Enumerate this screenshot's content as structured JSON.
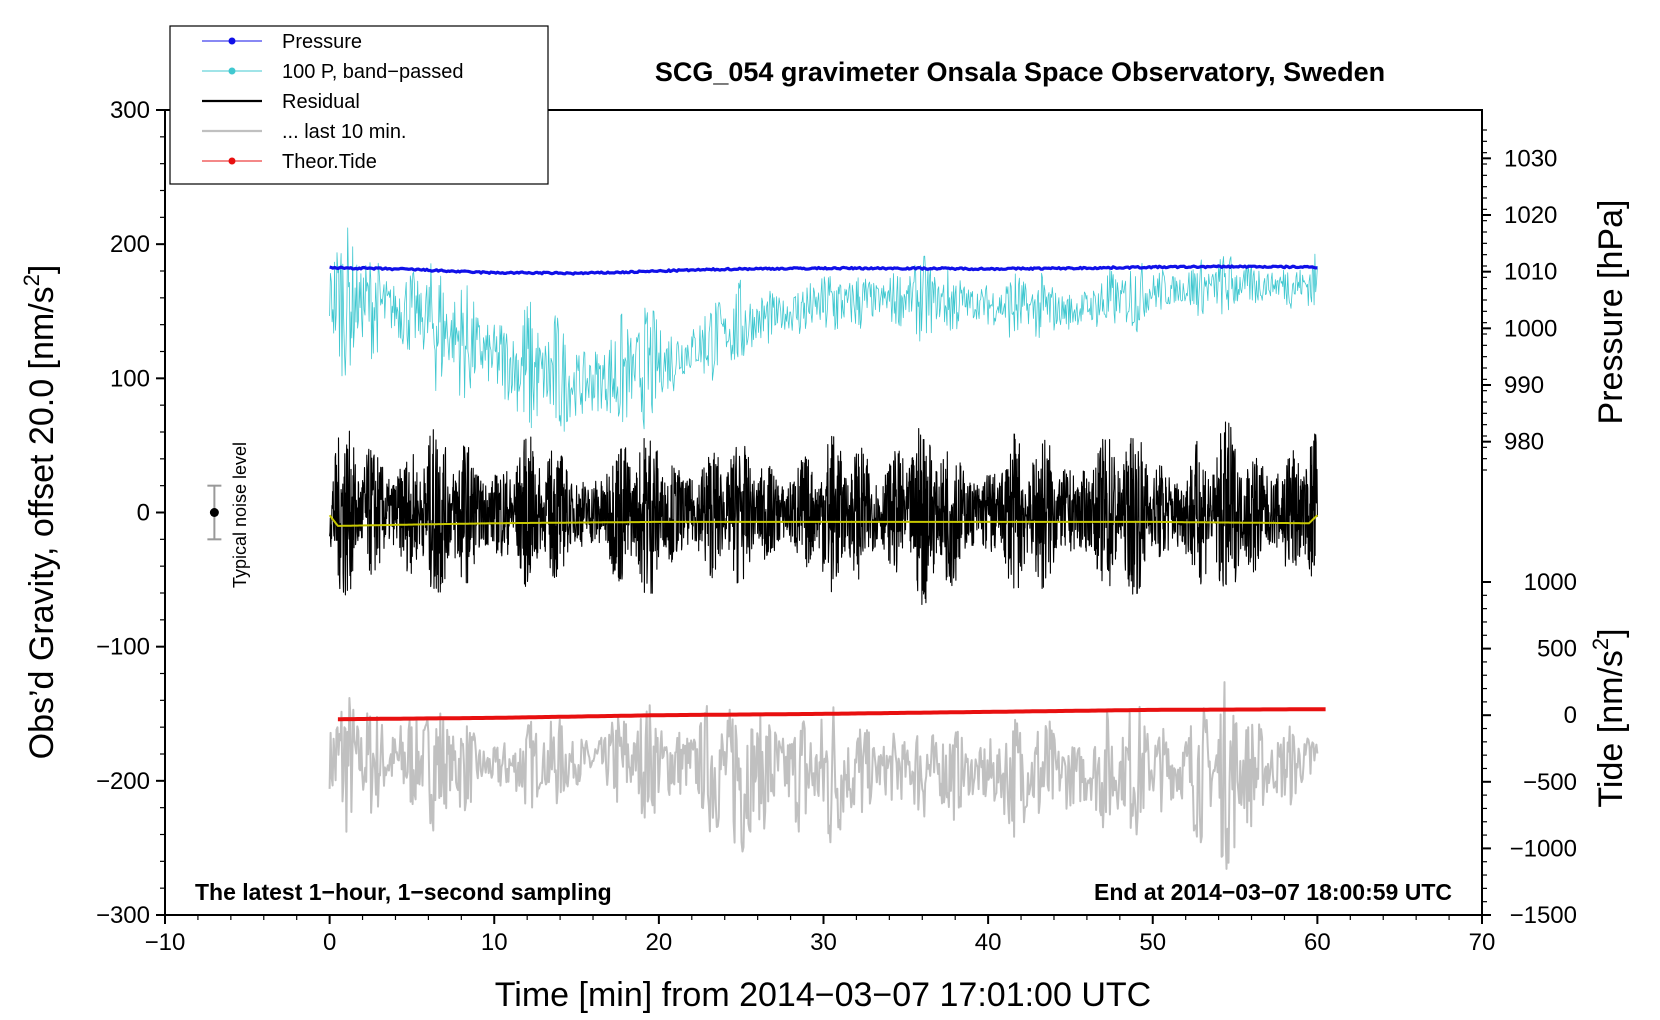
{
  "chart_data": {
    "type": "line",
    "title": "SCG_054 gravimeter Onsala Space Observatory, Sweden",
    "xlabel": "Time [min] from 2014−03−07 17:01:00 UTC",
    "ylabel": "Obs’d Gravity, offset 20.0 [nm/s2]",
    "ylabel_main": "Obs’d Gravity, offset 20.0 [nm/s",
    "ylabel_sup": "2",
    "ylabel_end": "]",
    "xlim": [
      -10,
      70
    ],
    "ylim": [
      -300,
      300
    ],
    "x_ticks": [
      -10,
      0,
      10,
      20,
      30,
      40,
      50,
      60,
      70
    ],
    "x_tick_labels": [
      "−10",
      "0",
      "10",
      "20",
      "30",
      "40",
      "50",
      "60",
      "70"
    ],
    "y_ticks": [
      300,
      200,
      100,
      0,
      -100,
      -200,
      -300
    ],
    "y_tick_labels": [
      "300",
      "200",
      "100",
      "0",
      "−100",
      "−200",
      "−300"
    ],
    "pressure_axis": {
      "label": "Pressure [hPa]",
      "ticks": [
        1030,
        1020,
        1010,
        1000,
        990,
        980
      ],
      "tick_labels": [
        "1030",
        "1020",
        "1010",
        "1000",
        "990",
        "980"
      ],
      "range": [
        975,
        1035
      ]
    },
    "tide_axis": {
      "label": "Tide [nm/s2]",
      "label_main": "Tide [nm/s",
      "label_sup": "2",
      "label_end": "]",
      "ticks": [
        1000,
        500,
        0,
        -500,
        -1000,
        -1500
      ],
      "tick_labels": [
        "1000",
        "500",
        "0",
        "−500",
        "−1000",
        "−1500"
      ],
      "range": [
        -1500,
        1000
      ]
    },
    "annotations": {
      "bottom_left": "The latest 1−hour, 1−second sampling",
      "bottom_right": "End at 2014−03−07 18:00:59 UTC",
      "noise_label": "Typical noise level",
      "noise_bar": {
        "x": -7,
        "center": 0,
        "half_range": 20
      }
    },
    "legend": {
      "position": "top-left",
      "entries": [
        {
          "label": "Pressure",
          "color": "#1010e8",
          "marker": true
        },
        {
          "label": "100 P, band−passed",
          "color": "#40c8d0",
          "marker": true
        },
        {
          "label": "Residual",
          "color": "#000000",
          "marker": false
        },
        {
          "label": "... last 10 min.",
          "color": "#c0c0c0",
          "marker": false
        },
        {
          "label": "Theor.Tide",
          "color": "#e81010",
          "marker": true
        }
      ]
    },
    "series": [
      {
        "name": "Pressure",
        "axis": "pressure",
        "color": "#1010e8",
        "x": [
          0,
          2,
          5,
          8,
          10,
          12,
          15,
          18,
          21,
          25,
          30,
          35,
          40,
          45,
          50,
          55,
          60
        ],
        "values": [
          1010.7,
          1010.6,
          1010.4,
          1010.0,
          1009.8,
          1009.8,
          1009.7,
          1009.9,
          1010.2,
          1010.5,
          1010.6,
          1010.6,
          1010.5,
          1010.6,
          1010.8,
          1010.9,
          1010.8
        ]
      },
      {
        "name": "100 P, band−passed",
        "axis": "gravity",
        "color": "#40c8d0",
        "x": [
          0,
          5,
          10,
          15,
          20,
          25,
          30,
          35,
          40,
          45,
          50,
          55,
          60
        ],
        "values": [
          160,
          150,
          115,
          95,
          110,
          140,
          155,
          160,
          155,
          150,
          165,
          170,
          170
        ],
        "amplitude": [
          60,
          50,
          60,
          55,
          50,
          35,
          30,
          35,
          30,
          30,
          30,
          25,
          25
        ]
      },
      {
        "name": "Residual",
        "axis": "gravity",
        "color": "#000000",
        "x": [
          0,
          5,
          10,
          15,
          20,
          25,
          30,
          35,
          40,
          45,
          50,
          55,
          60
        ],
        "values": [
          0,
          0,
          0,
          0,
          0,
          0,
          0,
          0,
          0,
          0,
          0,
          0,
          0
        ],
        "amplitude": [
          65,
          70,
          65,
          55,
          70,
          55,
          60,
          75,
          60,
          70,
          65,
          70,
          70
        ]
      },
      {
        "name": "Residual smoothed",
        "axis": "gravity",
        "color": "#c8c800",
        "x": [
          0,
          0.5,
          5,
          10,
          20,
          30,
          40,
          50,
          59.5,
          60
        ],
        "values": [
          -2,
          -10,
          -9,
          -8,
          -7,
          -7,
          -7,
          -7,
          -8,
          -2
        ]
      },
      {
        "name": "... last 10 min.",
        "axis": "gravity",
        "color": "#c0c0c0",
        "x": [
          0,
          5,
          10,
          15,
          20,
          25,
          30,
          35,
          40,
          45,
          50,
          55,
          60
        ],
        "values": [
          -185,
          -185,
          -190,
          -185,
          -185,
          -190,
          -195,
          -190,
          -195,
          -195,
          -190,
          -195,
          -185
        ],
        "amplitude": [
          60,
          60,
          35,
          40,
          50,
          75,
          70,
          40,
          50,
          55,
          55,
          75,
          30
        ]
      },
      {
        "name": "Theor.Tide",
        "axis": "tide",
        "color": "#e81010",
        "x": [
          0.5,
          10,
          20,
          30,
          40,
          50,
          60.5
        ],
        "values": [
          -30,
          -20,
          0,
          10,
          25,
          40,
          45
        ]
      }
    ]
  }
}
